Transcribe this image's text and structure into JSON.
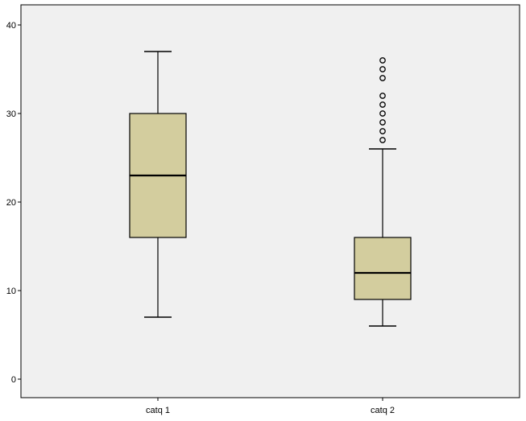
{
  "chart_data": {
    "type": "boxplot",
    "title": "",
    "xlabel": "",
    "ylabel": "",
    "ylim": [
      -2,
      42
    ],
    "yticks": [
      0,
      10,
      20,
      30,
      40
    ],
    "grid": false,
    "categories": [
      "catq 1",
      "catq 2"
    ],
    "boxes": [
      {
        "category": "catq 1",
        "whisker_low": 7,
        "q1": 16,
        "median": 23,
        "q3": 30,
        "whisker_high": 37,
        "outliers": []
      },
      {
        "category": "catq 2",
        "whisker_low": 6,
        "q1": 9,
        "median": 12,
        "q3": 16,
        "whisker_high": 26,
        "outliers": [
          27,
          28,
          29,
          30,
          31,
          32,
          34,
          35,
          36
        ]
      }
    ],
    "colors": {
      "plot_background": "#f0f0f0",
      "box_fill": "#d3cd9e",
      "stroke": "#000000"
    }
  }
}
